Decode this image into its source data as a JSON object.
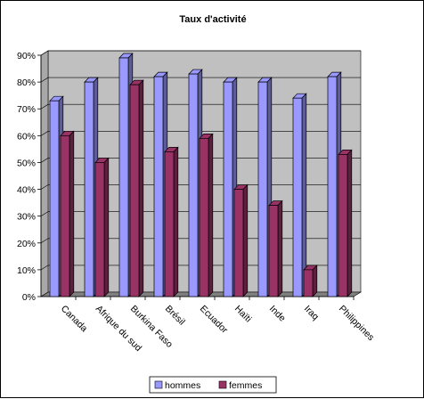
{
  "chart_data": {
    "type": "bar",
    "title": "Taux d'activité",
    "xlabel": "",
    "ylabel": "",
    "categories": [
      "Canada",
      "Afrique du sud",
      "Burkina Faso",
      "Brésil",
      "Ecuador",
      "Haïti",
      "Inde",
      "Iraq",
      "Philippines"
    ],
    "series": [
      {
        "name": "hommes",
        "values": [
          73,
          80,
          89,
          82,
          83,
          80,
          80,
          74,
          82
        ]
      },
      {
        "name": "femmes",
        "values": [
          60,
          50,
          79,
          54,
          59,
          40,
          34,
          10,
          53
        ]
      }
    ],
    "yticks": [
      "0%",
      "10%",
      "20%",
      "30%",
      "40%",
      "50%",
      "60%",
      "70%",
      "80%",
      "90%"
    ],
    "ylim": [
      0,
      90
    ],
    "grid": true,
    "legend_position": "bottom",
    "colors": {
      "hommes": "#9999ff",
      "femmes": "#993366",
      "wall": "#c0c0c0",
      "floor": "#808080"
    }
  }
}
